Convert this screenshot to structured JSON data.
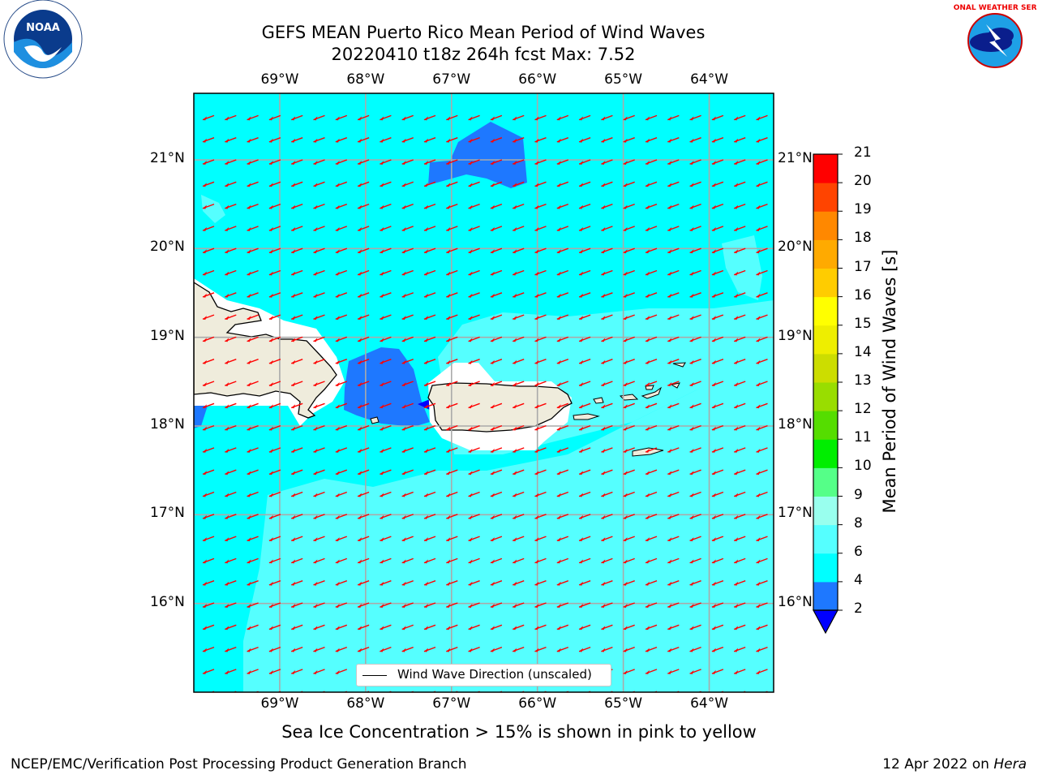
{
  "title": {
    "line1": "GEFS MEAN Puerto Rico Mean Period of Wind Waves",
    "line2": "20220410 t18z 264h fcst   Max: 7.52"
  },
  "map": {
    "lon_range": [
      -70.0,
      -63.25
    ],
    "lat_range": [
      15.0,
      21.75
    ],
    "lon_ticks": [
      "69°W",
      "68°W",
      "67°W",
      "66°W",
      "65°W",
      "64°W"
    ],
    "lat_ticks": [
      "16°N",
      "17°N",
      "18°N",
      "19°N",
      "20°N",
      "21°N"
    ],
    "background_color": "#00ffff",
    "land_color": "#efecdc",
    "arrow_color": "#ff0000",
    "wind_direction": "from east-northeast"
  },
  "legend": {
    "label": "Wind Wave Direction (unscaled)"
  },
  "colorbar": {
    "title": "Mean Period of Wind Waves [s]",
    "ticks": [
      "2",
      "4",
      "6",
      "8",
      "9",
      "10",
      "11",
      "12",
      "13",
      "14",
      "15",
      "16",
      "17",
      "18",
      "19",
      "20",
      "21"
    ],
    "colors": [
      "#1e78ff",
      "#00ffff",
      "#55ffff",
      "#99ffee",
      "#55ff88",
      "#00ee00",
      "#55dd00",
      "#99dd00",
      "#ccdd00",
      "#eeee00",
      "#ffff00",
      "#ffcc00",
      "#ffaa00",
      "#ff8800",
      "#ff4400",
      "#ff0000"
    ],
    "under_color": "#0000ff"
  },
  "subtitle": "Sea Ice Concentration > 15% is shown in pink to yellow",
  "footer": {
    "left": "NCEP/EMC/Verification Post Processing Product Generation Branch",
    "right_date": "12 Apr 2022 on ",
    "right_host": "Hera"
  },
  "logos": {
    "noaa": "NOAA",
    "nws": "NATIONAL WEATHER SERVICE"
  }
}
